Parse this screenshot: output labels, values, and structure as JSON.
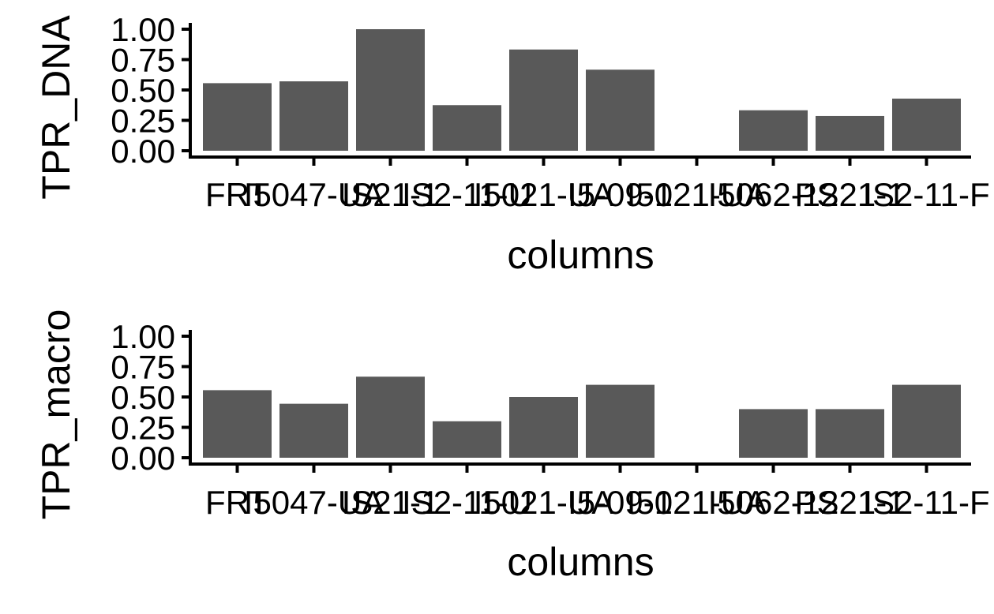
{
  "chart_data": [
    {
      "type": "bar",
      "categories": [
        "FRT",
        "I5047-UA",
        "IS21-1",
        "IS2-11-U",
        "I5021-UA",
        "I5-09-1",
        "I5021-UA",
        "I5062-12",
        "PS21-1",
        "IS2-11-F"
      ],
      "values": [
        0.556,
        0.571,
        1.0,
        0.375,
        0.833,
        0.667,
        0.0,
        0.333,
        0.286,
        0.429
      ],
      "xlabel": "columns",
      "ylabel": "TPR_DNA",
      "ylim": [
        0,
        1
      ],
      "yticks": [
        "0.00",
        "0.25",
        "0.50",
        "0.75",
        "1.00"
      ],
      "bar_color": "#595959",
      "grid": false,
      "legend": false
    },
    {
      "type": "bar",
      "categories": [
        "FRT",
        "I5047-UA",
        "IS21-1",
        "IS2-11-U",
        "I5021-UA",
        "I5-09-1",
        "I5021-UA",
        "I5062-12",
        "PS21-1",
        "IS2-11-F"
      ],
      "values": [
        0.556,
        0.444,
        0.667,
        0.3,
        0.5,
        0.6,
        0.0,
        0.4,
        0.4,
        0.6
      ],
      "xlabel": "columns",
      "ylabel": "TPR_macro",
      "ylim": [
        0,
        1
      ],
      "yticks": [
        "0.00",
        "0.25",
        "0.50",
        "0.75",
        "1.00"
      ],
      "bar_color": "#595959",
      "grid": false,
      "legend": false
    }
  ]
}
